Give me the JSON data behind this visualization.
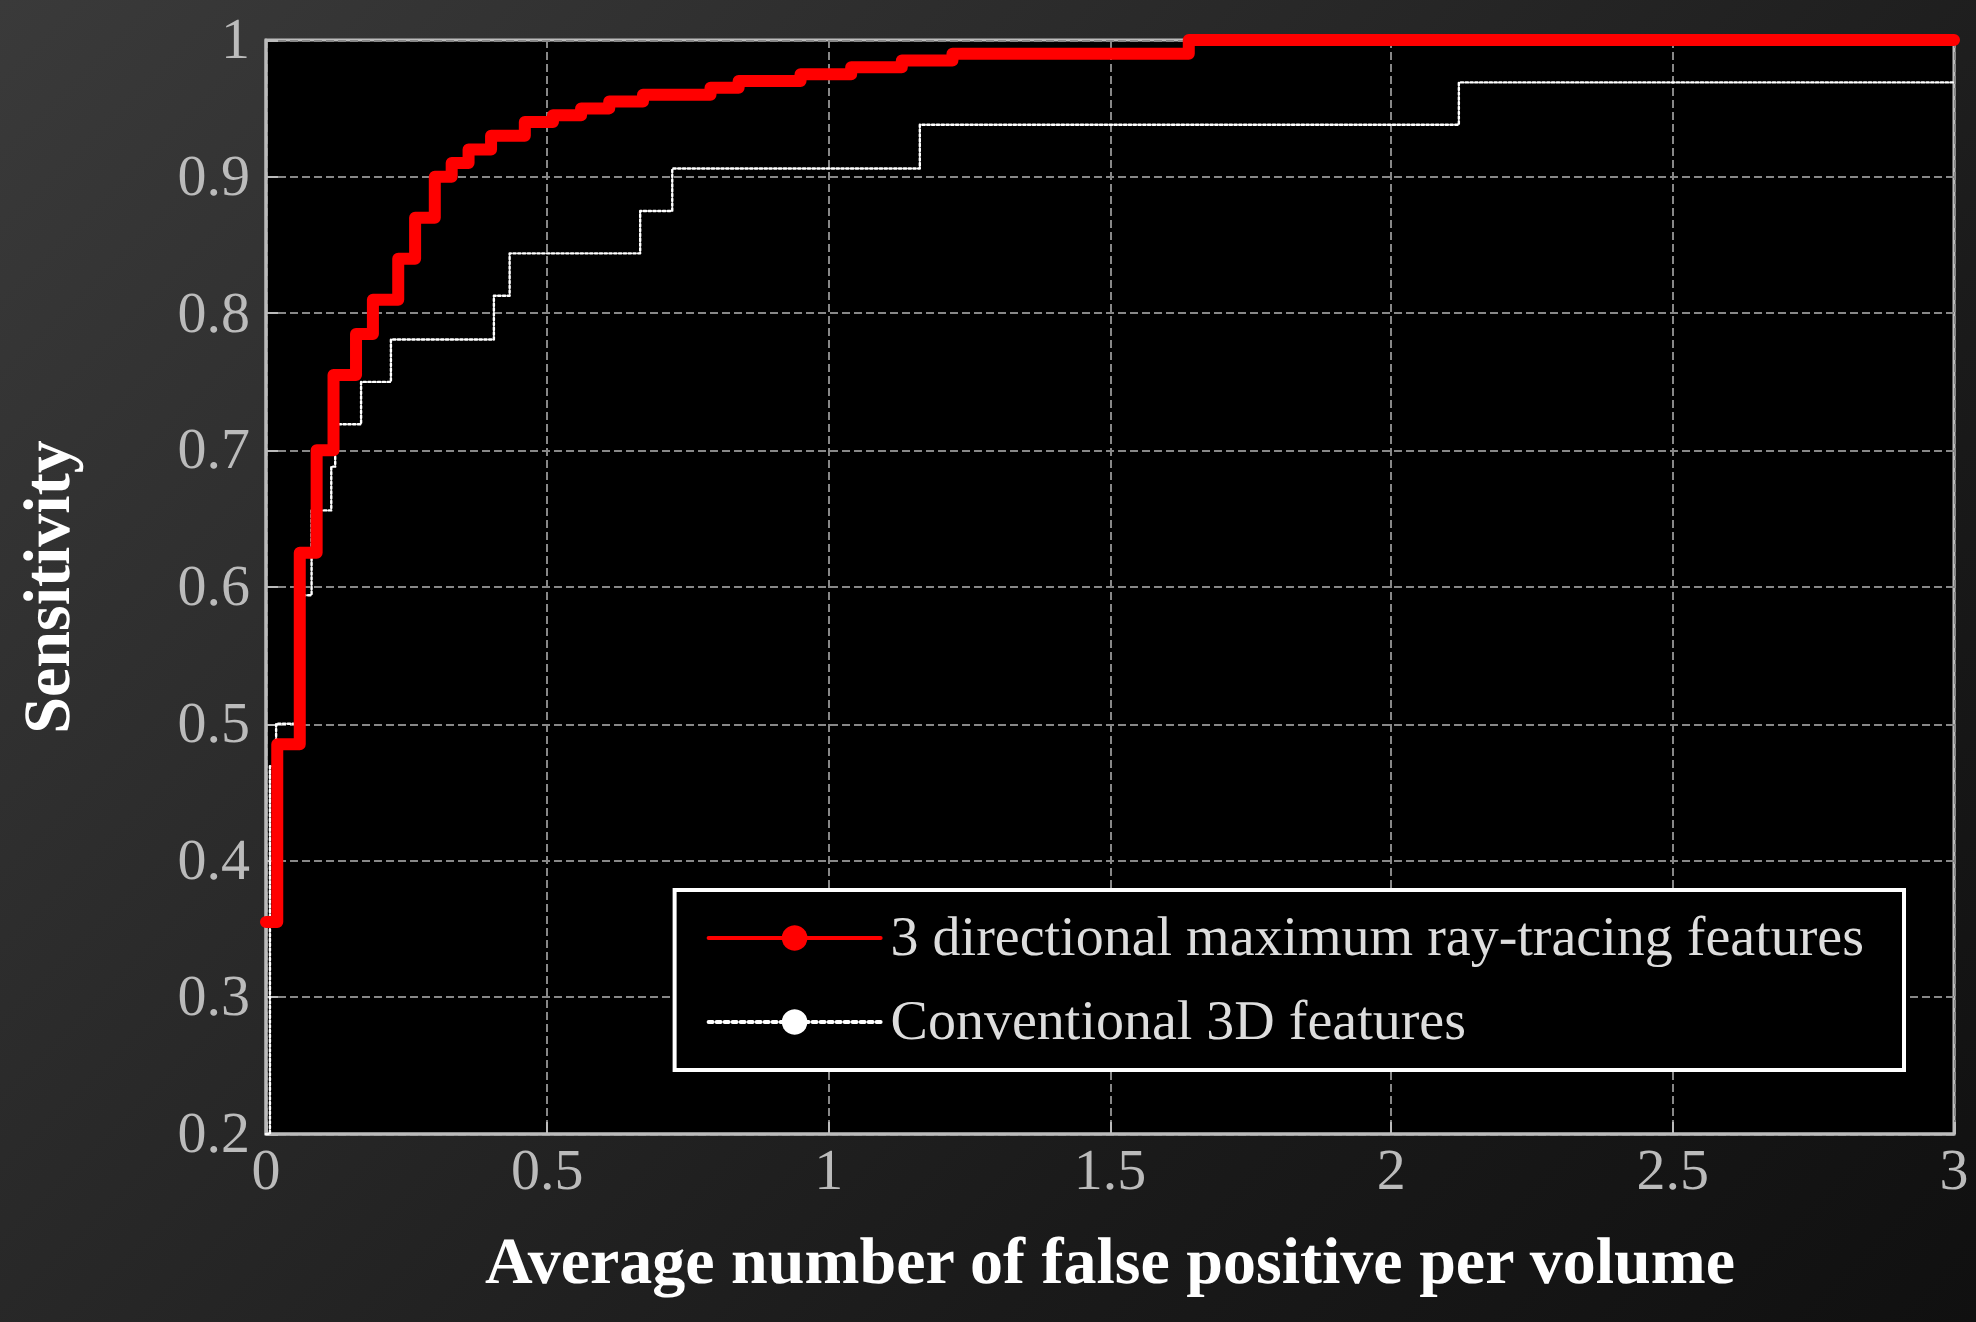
{
  "chart_data": {
    "type": "step",
    "xlabel": "Average number of false positive per volume",
    "ylabel": "Sensitivity",
    "xlim": [
      0,
      3
    ],
    "xticks": [
      0,
      0.5,
      1,
      1.5,
      2,
      2.5,
      3
    ],
    "ylim": [
      0.2,
      1
    ],
    "yticks": [
      0.2,
      0.3,
      0.4,
      0.5,
      0.6,
      0.7,
      0.8,
      0.9,
      1
    ],
    "grid": true,
    "legend": "bottom right",
    "marker": "none",
    "series": [
      {
        "name": "3 directional maximum ray-tracing features",
        "color": "#ff0000",
        "line_style": "solid",
        "x": [
          0,
          0.02,
          0.06,
          0.09,
          0.12,
          0.16,
          0.19,
          0.235,
          0.265,
          0.3,
          0.33,
          0.36,
          0.4,
          0.46,
          0.51,
          0.56,
          0.61,
          0.67,
          0.79,
          0.84,
          0.95,
          1.04,
          1.13,
          1.22,
          1.64,
          3
        ],
        "values": [
          0.355,
          0.485,
          0.625,
          0.7,
          0.755,
          0.785,
          0.81,
          0.84,
          0.87,
          0.9,
          0.91,
          0.92,
          0.93,
          0.94,
          0.945,
          0.95,
          0.955,
          0.96,
          0.965,
          0.97,
          0.975,
          0.98,
          0.985,
          0.99,
          1,
          1
        ]
      },
      {
        "name": "Conventional 3D features",
        "color": "#ffffff",
        "line_style": "dotted",
        "x": [
          0,
          0.007,
          0.018,
          0.053,
          0.081,
          0.116,
          0.123,
          0.169,
          0.222,
          0.405,
          0.433,
          0.665,
          0.722,
          1.162,
          2.12,
          3
        ],
        "values": [
          0.2,
          0.469,
          0.5,
          0.594,
          0.656,
          0.688,
          0.719,
          0.75,
          0.781,
          0.813,
          0.844,
          0.875,
          0.906,
          0.938,
          0.969,
          0.969
        ]
      }
    ]
  }
}
